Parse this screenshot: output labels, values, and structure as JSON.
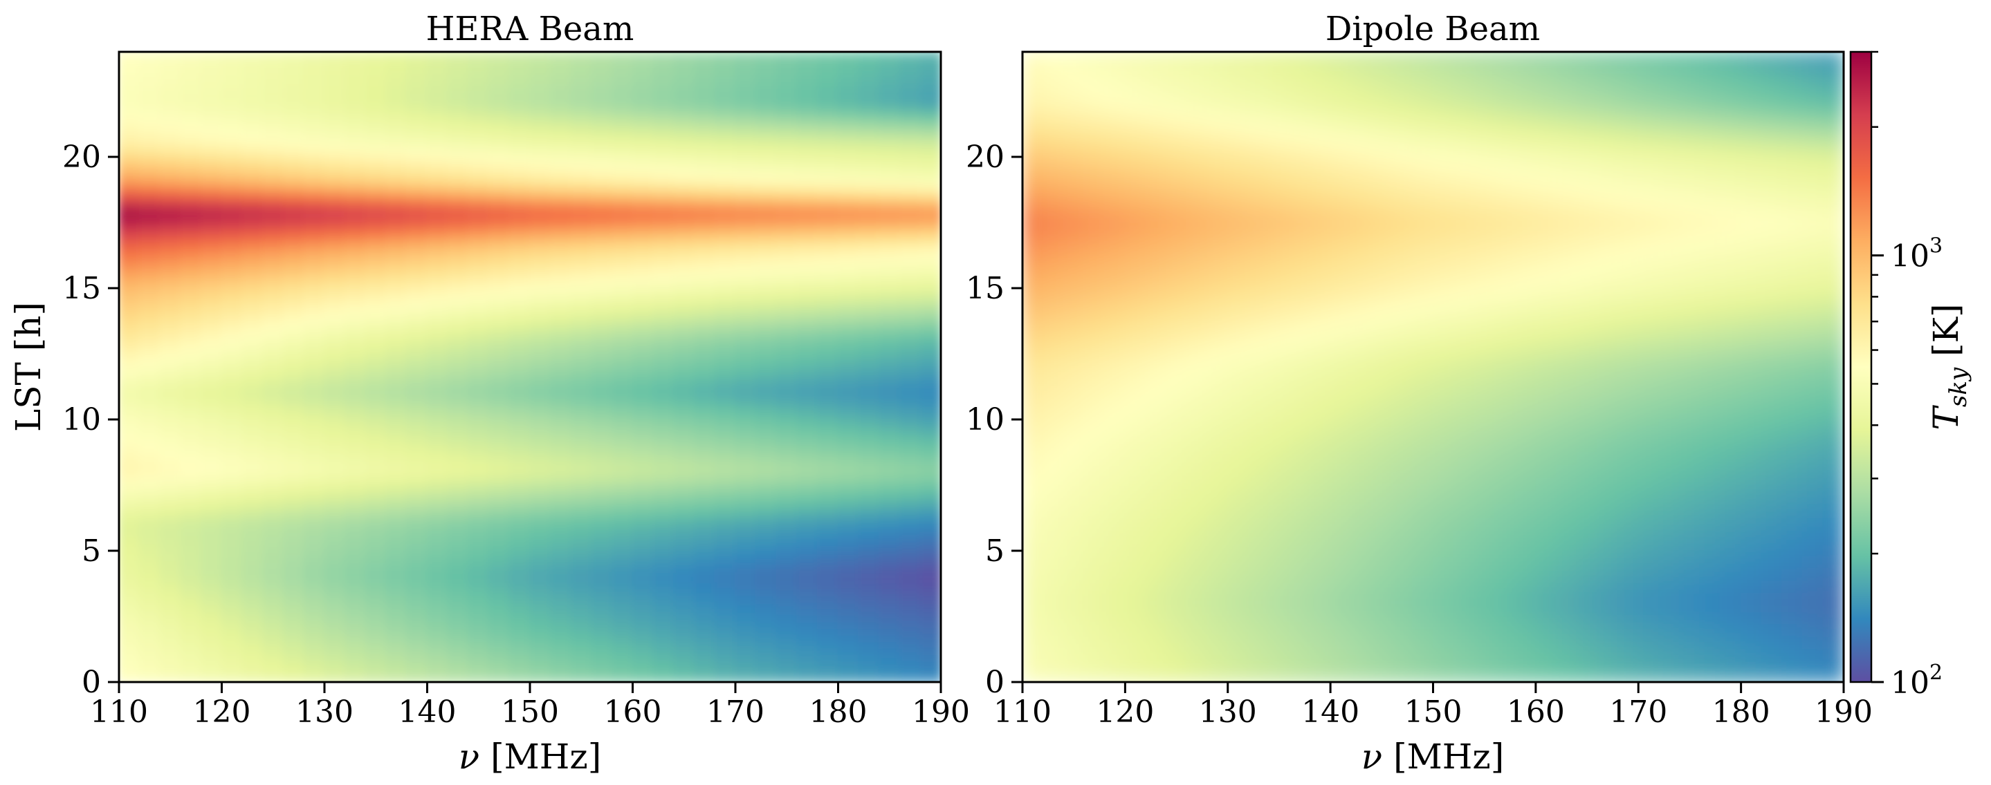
{
  "figure": {
    "colorbar": {
      "label": "T_sky [K]",
      "label_main": "T",
      "label_sub": "sky",
      "label_unit": " [K]",
      "scale": "log",
      "range": [
        100,
        3000
      ],
      "tick_labels": [
        {
          "value": 100,
          "base": "10",
          "exp": "2"
        },
        {
          "value": 1000,
          "base": "10",
          "exp": "3"
        }
      ],
      "colormap": "Spectral_r",
      "colors": [
        "#5e4fa2",
        "#3288bd",
        "#66c2a5",
        "#abdda4",
        "#e6f598",
        "#ffffbf",
        "#fee08b",
        "#fdae61",
        "#f46d43",
        "#d53e4f",
        "#9e0142"
      ]
    }
  },
  "chart_data": [
    {
      "type": "heatmap",
      "title": "HERA Beam",
      "xlabel": "ν [MHz]",
      "xlabel_symbol": "ν",
      "xlabel_unit": " [MHz]",
      "ylabel": "LST [h]",
      "xlim": [
        110,
        190
      ],
      "ylim": [
        0,
        24
      ],
      "xticks": [
        110,
        120,
        130,
        140,
        150,
        160,
        170,
        180,
        190
      ],
      "yticks": [
        0,
        5,
        10,
        15,
        20
      ],
      "value_unit": "K",
      "lst": [
        0,
        2,
        4,
        6,
        8,
        10,
        11,
        13,
        15,
        16.5,
        17.8,
        19,
        20.5,
        22,
        24
      ],
      "freq": [
        110,
        130,
        150,
        170,
        190
      ],
      "tsky_K": [
        [
          560,
          380,
          260,
          180,
          140
        ],
        [
          500,
          300,
          200,
          150,
          120
        ],
        [
          420,
          250,
          170,
          130,
          100
        ],
        [
          380,
          280,
          210,
          170,
          140
        ],
        [
          620,
          480,
          380,
          300,
          240
        ],
        [
          520,
          380,
          280,
          210,
          160
        ],
        [
          460,
          320,
          230,
          170,
          140
        ],
        [
          700,
          450,
          320,
          240,
          190
        ],
        [
          1000,
          720,
          560,
          460,
          400
        ],
        [
          1600,
          1150,
          850,
          700,
          600
        ],
        [
          3000,
          2300,
          1700,
          1450,
          1300
        ],
        [
          1200,
          900,
          700,
          580,
          500
        ],
        [
          640,
          520,
          440,
          380,
          340
        ],
        [
          520,
          420,
          300,
          220,
          160
        ],
        [
          560,
          430,
          330,
          240,
          180
        ]
      ]
    },
    {
      "type": "heatmap",
      "title": "Dipole Beam",
      "xlabel": "ν [MHz]",
      "xlabel_symbol": "ν",
      "xlabel_unit": " [MHz]",
      "ylabel": "",
      "xlim": [
        110,
        190
      ],
      "ylim": [
        0,
        24
      ],
      "xticks": [
        110,
        120,
        130,
        140,
        150,
        160,
        170,
        180,
        190
      ],
      "yticks": [
        0,
        5,
        10,
        15,
        20
      ],
      "value_unit": "K",
      "lst": [
        0,
        3,
        6,
        9,
        12,
        15,
        17.5,
        20,
        22,
        24
      ],
      "freq": [
        110,
        130,
        150,
        170,
        190
      ],
      "tsky_K": [
        [
          520,
          360,
          250,
          180,
          140
        ],
        [
          480,
          320,
          220,
          150,
          120
        ],
        [
          520,
          360,
          250,
          180,
          140
        ],
        [
          600,
          420,
          300,
          220,
          170
        ],
        [
          720,
          520,
          380,
          290,
          230
        ],
        [
          1050,
          780,
          600,
          480,
          400
        ],
        [
          1400,
          1000,
          760,
          620,
          520
        ],
        [
          900,
          700,
          540,
          440,
          370
        ],
        [
          620,
          480,
          360,
          260,
          190
        ],
        [
          560,
          420,
          300,
          210,
          150
        ]
      ]
    }
  ]
}
